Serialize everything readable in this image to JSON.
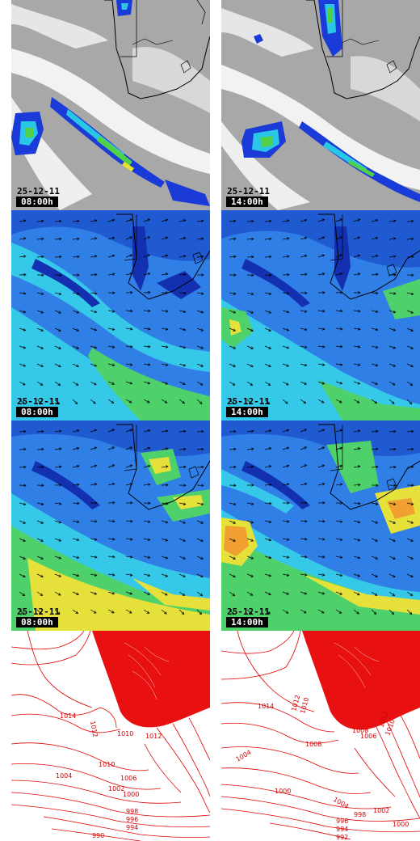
{
  "colors": {
    "cloud_gray": "#a8a8a8",
    "cloud_white": "#f4f4f4",
    "precip_blue": "#1b3bd8",
    "precip_cyan": "#29c6e6",
    "precip_green": "#52d04a",
    "precip_yellow": "#e8e22a",
    "wind_dark_blue": "#1230b0",
    "wind_mid_blue": "#2f7fe6",
    "wind_cyan": "#36c8e8",
    "wind_green": "#4ed06a",
    "wind_yellow": "#e6e03a",
    "wind_orange": "#f0a030",
    "isobar_red": "#e00000",
    "coastline": "#000000"
  },
  "rows": [
    {
      "kind": "satellite-precip",
      "panels": [
        {
          "date": "25-12-11",
          "time": "08:00h"
        },
        {
          "date": "25-12-11",
          "time": "14:00h"
        }
      ]
    },
    {
      "kind": "wind-low-level",
      "panels": [
        {
          "date": "25-12-11",
          "time": "08:00h"
        },
        {
          "date": "25-12-11",
          "time": "14:00h"
        }
      ]
    },
    {
      "kind": "wind-upper-level",
      "panels": [
        {
          "date": "25-12-11",
          "time": "08:00h"
        },
        {
          "date": "25-12-11",
          "time": "14:00h"
        }
      ]
    },
    {
      "kind": "pressure-isobars",
      "panels": [
        {
          "date": "",
          "time": ""
        },
        {
          "date": "",
          "time": ""
        }
      ]
    }
  ],
  "isobar_labels": {
    "left": [
      "1014",
      "1012",
      "1010",
      "1012",
      "1010",
      "1004",
      "1006",
      "1002",
      "1000",
      "998",
      "996",
      "994",
      "990"
    ],
    "right": [
      "1014",
      "1012",
      "1010",
      "1008",
      "1008",
      "1006",
      "1004",
      "1012",
      "1010",
      "1000",
      "1004",
      "1002",
      "1000",
      "998",
      "996",
      "994",
      "992"
    ]
  }
}
